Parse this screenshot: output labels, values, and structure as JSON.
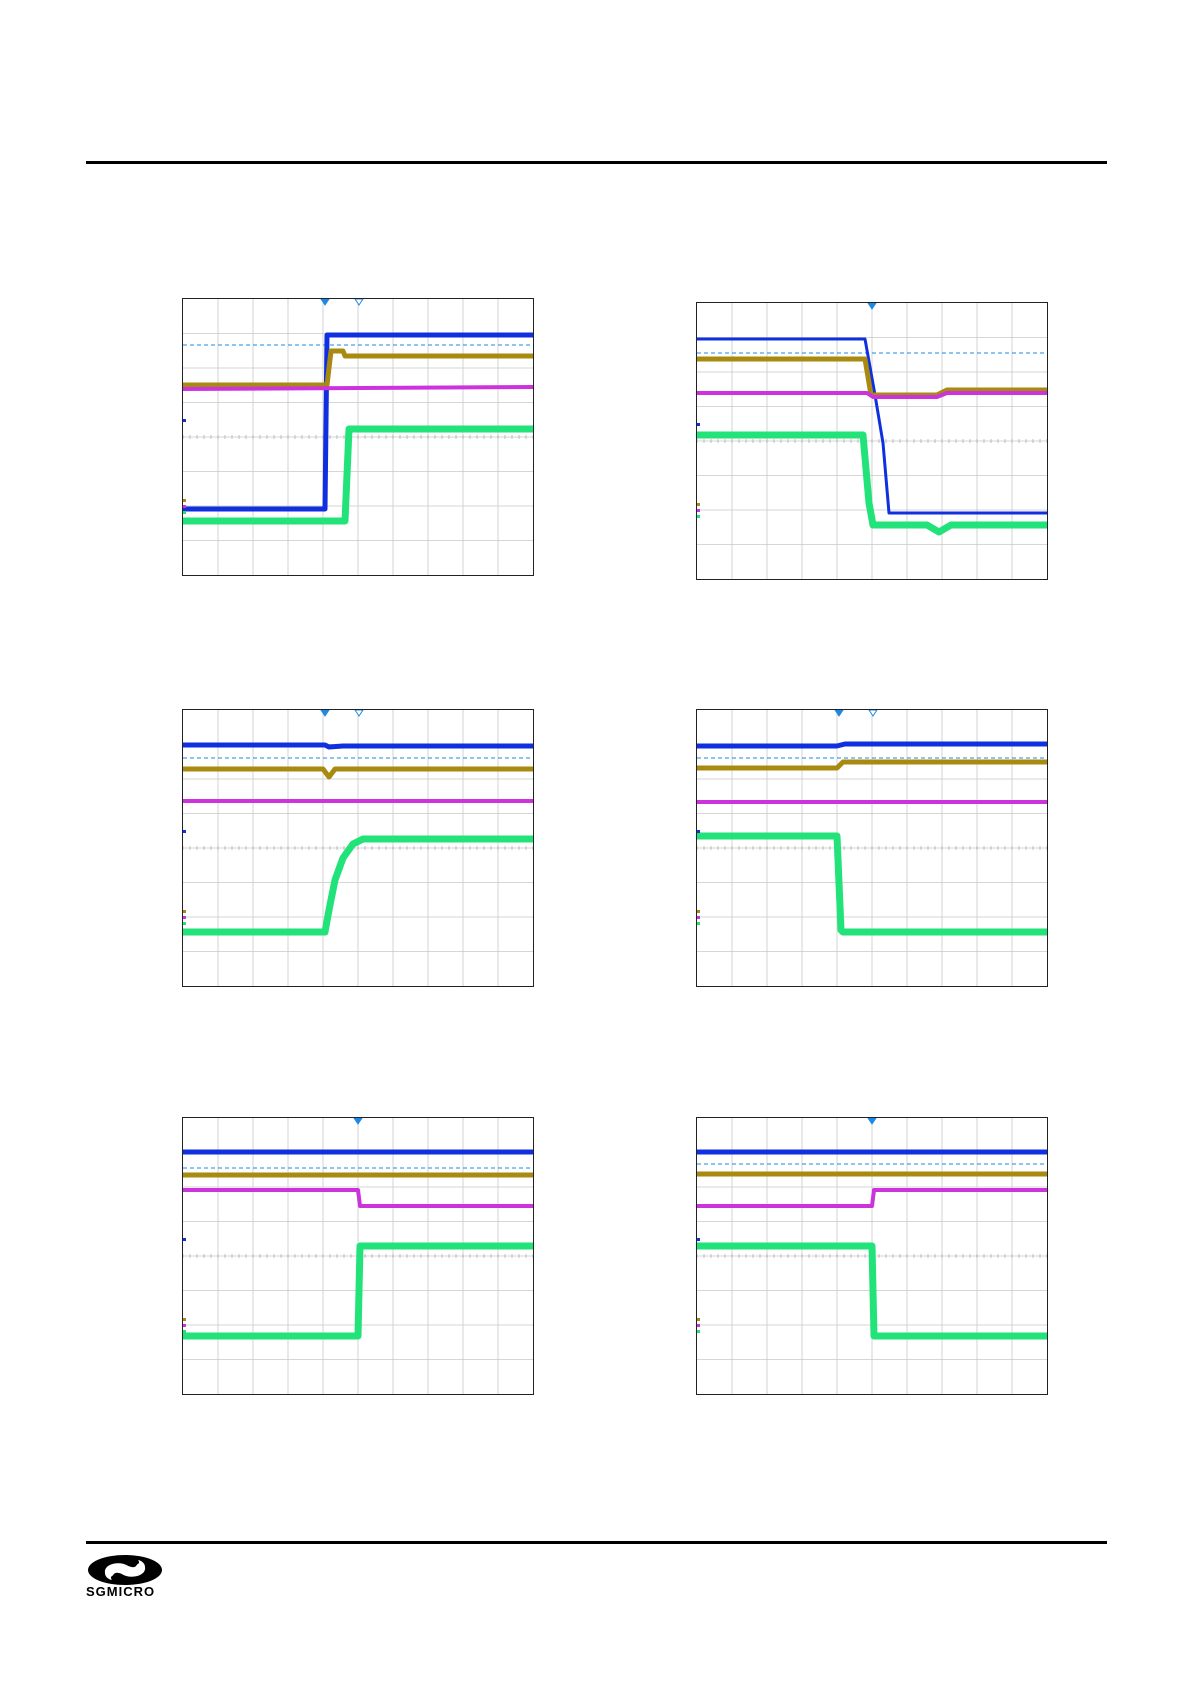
{
  "brand": {
    "name": "SGMICRO",
    "logo_icon": "sgmicro-swirl-icon"
  },
  "colors": {
    "ch_blue": "#1030e0",
    "ch_gold": "#a88a10",
    "ch_magenta": "#cc33dd",
    "ch_green": "#22e27a",
    "cursor_dash": "#1e88e5",
    "grid": "#c8c8c8"
  },
  "scopes": [
    {
      "id": "s1"
    },
    {
      "id": "s2"
    },
    {
      "id": "s3"
    },
    {
      "id": "s4"
    },
    {
      "id": "s5"
    },
    {
      "id": "s6"
    }
  ]
}
